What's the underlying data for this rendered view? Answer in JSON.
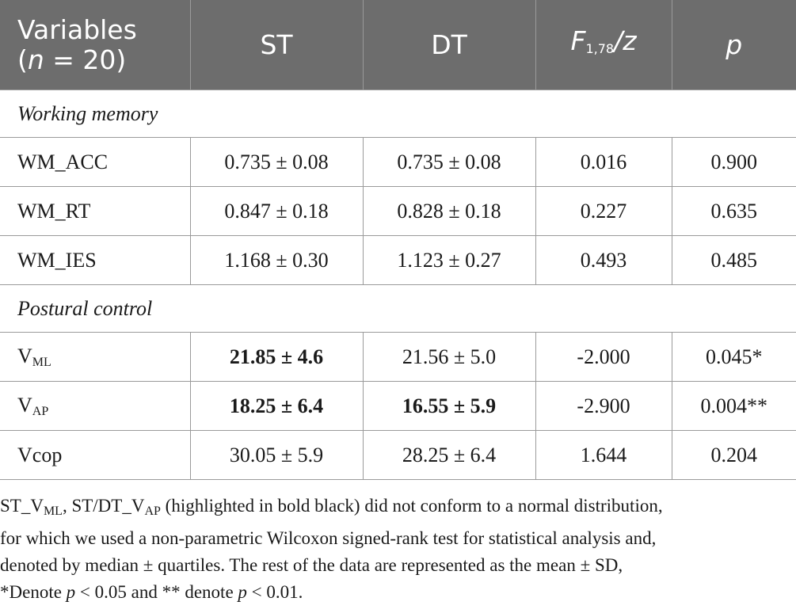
{
  "header": {
    "variables": "Variables",
    "n_eq": "(n = 20)",
    "st": "ST",
    "dt": "DT",
    "f_stat_main": "F",
    "f_stat_sub": "1,78",
    "f_stat_tail": "/z",
    "p": "p"
  },
  "sections": [
    {
      "title": "Working memory",
      "rows": [
        {
          "name": "WM_ACC",
          "st": "0.735 ± 0.08",
          "dt": "0.735 ± 0.08",
          "f": "0.016",
          "p": "0.900"
        },
        {
          "name": "WM_RT",
          "st": "0.847 ± 0.18",
          "dt": "0.828 ± 0.18",
          "f": "0.227",
          "p": "0.635"
        },
        {
          "name": "WM_IES",
          "st": "1.168 ± 0.30",
          "dt": "1.123 ± 0.27",
          "f": "0.493",
          "p": "0.485"
        }
      ]
    },
    {
      "title": "Postural control",
      "rows": [
        {
          "name_main": "V",
          "name_sub": "ML",
          "st": "21.85 ± 4.6",
          "dt": "21.56 ± 5.0",
          "f": "-2.000",
          "p": "0.045*"
        },
        {
          "name_main": "V",
          "name_sub": "AP",
          "st": "18.25 ± 6.4",
          "dt": "16.55 ± 5.9",
          "f": "-2.900",
          "p": "0.004**"
        },
        {
          "name": "Vcop",
          "st": "30.05 ± 5.9",
          "dt": "28.25 ± 6.4",
          "f": "1.644",
          "p": "0.204"
        }
      ]
    }
  ],
  "footnote": {
    "line1_a": "ST_V",
    "line1_sub1": "ML",
    "line1_b": ", ST/DT_V",
    "line1_sub2": "AP",
    "line1_c": " (highlighted in bold black) did not conform to a normal distribution,",
    "line2": "for which we used a non-parametric Wilcoxon signed-rank test for statistical analysis and,",
    "line3": "denoted by median ± quartiles. The rest of the data are represented as the mean ± SD,",
    "line4_a": "*Denote ",
    "line4_p1": "p",
    "line4_b": " < 0.05 and ** denote ",
    "line4_p2": "p",
    "line4_c": " < 0.01."
  }
}
